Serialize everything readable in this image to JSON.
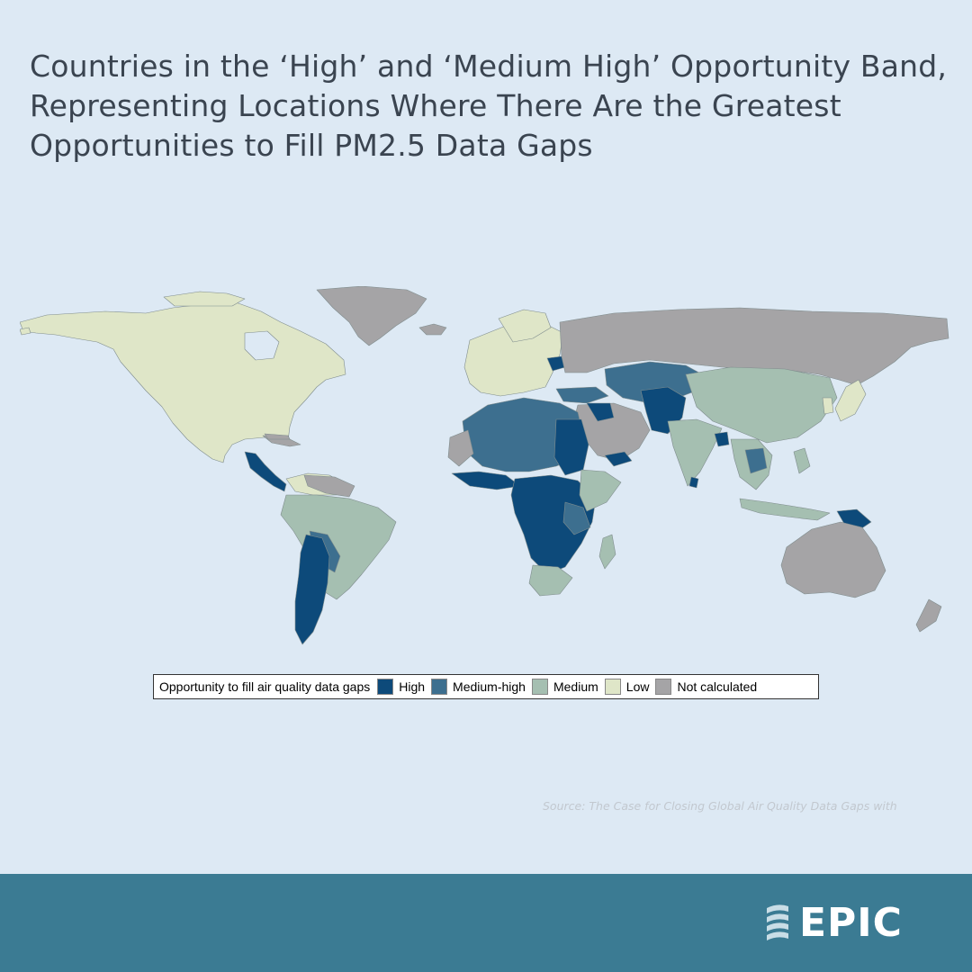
{
  "title": "Countries in the ‘High’ and ‘Medium High’ Opportunity Band, Representing Locations Where There Are the Greatest Opportunities to Fill PM2.5 Data Gaps",
  "legend": {
    "title": "Opportunity to fill air quality data gaps",
    "items": [
      {
        "label": "High",
        "color": "#0d4a7a"
      },
      {
        "label": "Medium-high",
        "color": "#3d6f8f"
      },
      {
        "label": "Medium",
        "color": "#a5bfb1"
      },
      {
        "label": "Low",
        "color": "#dfe6c8"
      },
      {
        "label": "Not calculated",
        "color": "#a5a4a6"
      }
    ]
  },
  "colors": {
    "background": "#dde9f4",
    "footer": "#3b7b93",
    "title_text": "#3a4450"
  },
  "source": "Source: The Case for Closing Global Air Quality Data Gaps with",
  "brand": {
    "logo_text": "EPIC",
    "logo_icon": "epic-swirl-icon"
  }
}
